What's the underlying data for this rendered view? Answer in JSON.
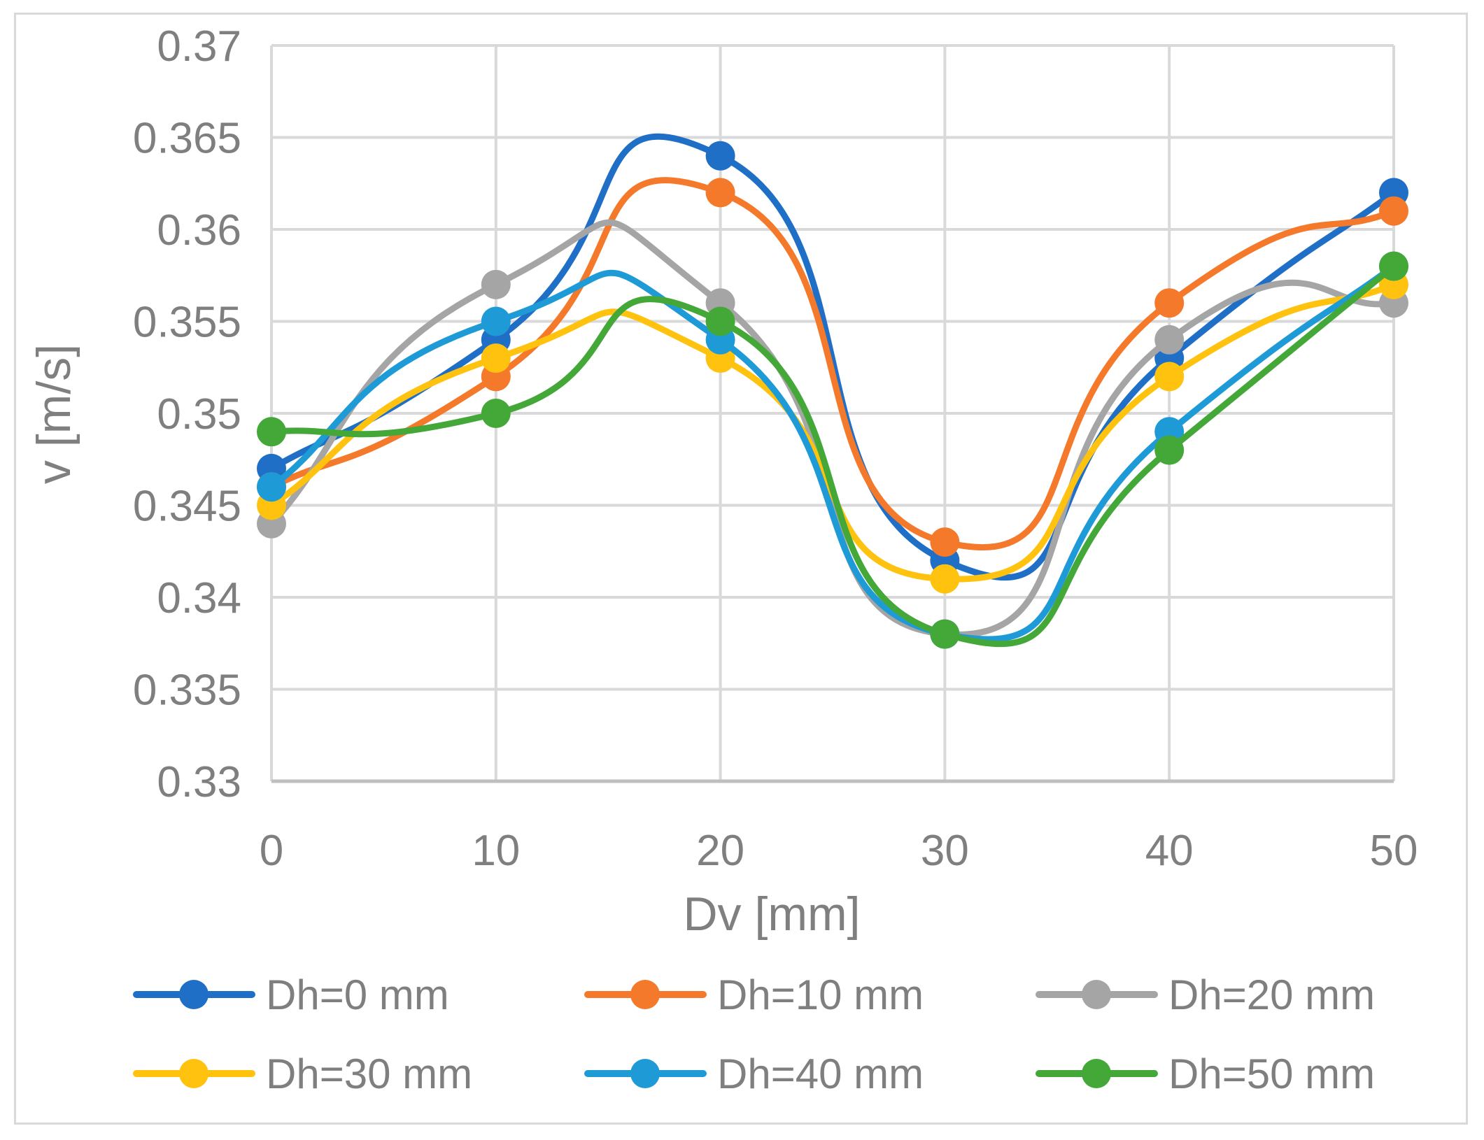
{
  "chart_data": {
    "type": "line",
    "title": "",
    "xlabel": "Dv [mm]",
    "ylabel": "v [m/s]",
    "x": [
      0,
      10,
      20,
      30,
      40,
      50
    ],
    "x_tick_labels": [
      "0",
      "10",
      "20",
      "30",
      "40",
      "50"
    ],
    "y_tick_labels": [
      "0.33",
      "0.335",
      "0.34",
      "0.345",
      "0.35",
      "0.355",
      "0.36",
      "0.365",
      "0.37"
    ],
    "ylim": [
      0.33,
      0.37
    ],
    "y_step": 0.005,
    "grid": true,
    "smooth": true,
    "legend_position": "bottom",
    "series": [
      {
        "name": "Dh=0 mm",
        "color": "#1f6fc6",
        "values": [
          0.347,
          0.354,
          0.364,
          0.342,
          0.353,
          0.362
        ]
      },
      {
        "name": "Dh=10 mm",
        "color": "#f4792b",
        "values": [
          0.346,
          0.352,
          0.362,
          0.343,
          0.356,
          0.361
        ]
      },
      {
        "name": "Dh=20 mm",
        "color": "#a5a5a5",
        "values": [
          0.344,
          0.357,
          0.356,
          0.338,
          0.354,
          0.356
        ]
      },
      {
        "name": "Dh=30 mm",
        "color": "#ffc20e",
        "values": [
          0.345,
          0.353,
          0.353,
          0.341,
          0.352,
          0.357
        ]
      },
      {
        "name": "Dh=40 mm",
        "color": "#1e9bd7",
        "values": [
          0.346,
          0.355,
          0.354,
          0.338,
          0.349,
          0.358
        ]
      },
      {
        "name": "Dh=50 mm",
        "color": "#43a838",
        "values": [
          0.349,
          0.35,
          0.355,
          0.338,
          0.348,
          0.358
        ]
      }
    ]
  }
}
